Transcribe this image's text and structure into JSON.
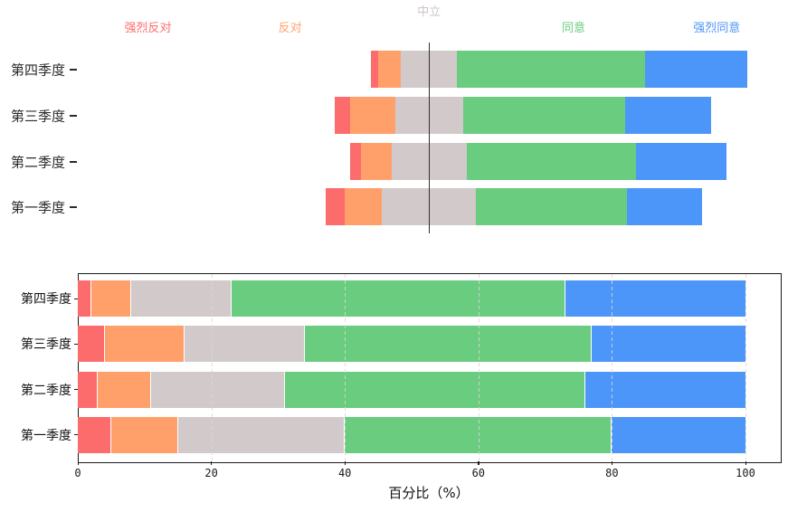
{
  "figure": {
    "background": "#ffffff",
    "palette": {
      "strongly_disagree": "#FC6C6C",
      "disagree": "#FFA06B",
      "neutral": "#D2CACA",
      "agree": "#69CC7E",
      "strongly_agree": "#4D96F9",
      "neutral_legend_text": "#CDC5C5",
      "center_line": "#303030",
      "spine": "#1a1a1a"
    }
  },
  "levels": [
    {
      "key": "strongly-disagree",
      "label": "强烈反对",
      "color": "#FC6C6C",
      "legend_text_color": "#FC6C6C"
    },
    {
      "key": "disagree",
      "label": "反对",
      "color": "#FFA06B",
      "legend_text_color": "#FFA06B"
    },
    {
      "key": "neutral",
      "label": "中立",
      "color": "#D2CACA",
      "legend_text_color": "#CDC5C5"
    },
    {
      "key": "agree",
      "label": "同意",
      "color": "#69CC7E",
      "legend_text_color": "#69CC7E"
    },
    {
      "key": "strongly-agree",
      "label": "强烈同意",
      "color": "#4D96F9",
      "legend_text_color": "#4D96F9"
    }
  ],
  "chart_data": [
    {
      "id": "top-diverging-likert",
      "type": "bar",
      "variant": "diverging_stacked_horizontal",
      "title": "",
      "categories": [
        "第四季度",
        "第三季度",
        "第二季度",
        "第一季度"
      ],
      "series": [
        {
          "name": "强烈反对",
          "color": "#FC6C6C",
          "values": [
            2,
            4,
            3,
            5
          ]
        },
        {
          "name": "反对",
          "color": "#FFA06B",
          "values": [
            6,
            12,
            8,
            10
          ]
        },
        {
          "name": "中立",
          "color": "#D2CACA",
          "values": [
            15,
            18,
            20,
            25
          ]
        },
        {
          "name": "同意",
          "color": "#69CC7E",
          "values": [
            50,
            43,
            45,
            40
          ]
        },
        {
          "name": "强烈同意",
          "color": "#4D96F9",
          "values": [
            27,
            23,
            24,
            20
          ]
        }
      ],
      "units": "percent",
      "row_totals": [
        100,
        100,
        100,
        100
      ],
      "center_line_label": "中立",
      "alignment": "bars offset so midpoint of 中立 segment sits on the vertical center line",
      "legend_position": "top",
      "axes_visible": false,
      "grid": "off"
    },
    {
      "id": "bottom-stacked-percent",
      "type": "bar",
      "variant": "stacked_horizontal_100pct",
      "title": "",
      "categories": [
        "第四季度",
        "第三季度",
        "第二季度",
        "第一季度"
      ],
      "series": [
        {
          "name": "强烈反对",
          "color": "#FC6C6C",
          "values": [
            2,
            4,
            3,
            5
          ]
        },
        {
          "name": "反对",
          "color": "#FFA06B",
          "values": [
            6,
            12,
            8,
            10
          ]
        },
        {
          "name": "中立",
          "color": "#D2CACA",
          "values": [
            15,
            18,
            20,
            25
          ]
        },
        {
          "name": "同意",
          "color": "#69CC7E",
          "values": [
            50,
            43,
            45,
            40
          ]
        },
        {
          "name": "强烈同意",
          "color": "#4D96F9",
          "values": [
            27,
            23,
            24,
            20
          ]
        }
      ],
      "xlabel": "百分比（%）",
      "ylabel": "",
      "xticks": [
        0,
        20,
        40,
        60,
        80,
        100
      ],
      "xlim": [
        0,
        100
      ],
      "grid": "dashed_vertical",
      "legend": "none",
      "segment_edge_color": "#ffffff"
    }
  ]
}
